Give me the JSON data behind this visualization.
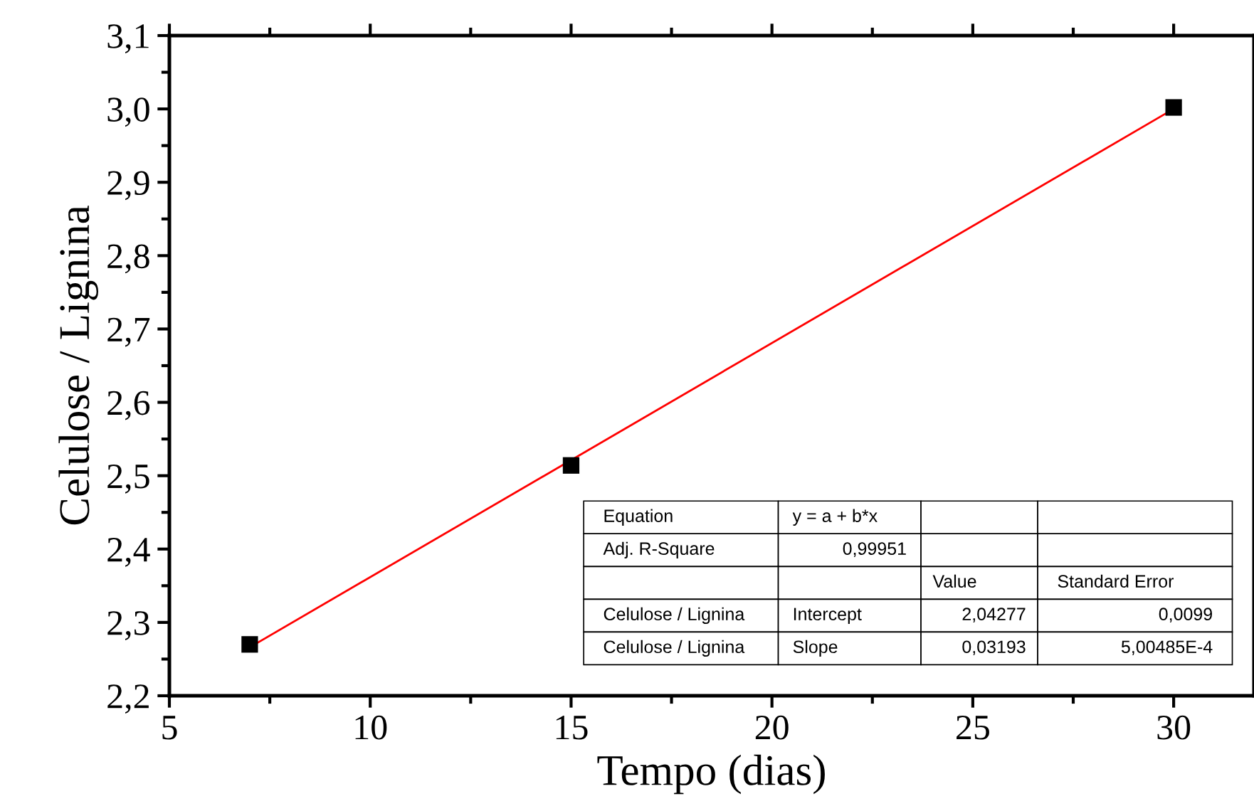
{
  "chart_data": {
    "type": "scatter",
    "xlabel": "Tempo (dias)",
    "ylabel": "Celulose / Lignina",
    "x": [
      7,
      15,
      30
    ],
    "series": [
      {
        "color": "#000000",
        "marker": "square",
        "values": [
          2.27,
          2.514,
          3.002
        ]
      },
      {
        "type": "line",
        "color": "#ff0000",
        "marker": "none",
        "line_style": "solid",
        "x": [
          7,
          30
        ],
        "values": [
          2.266,
          3.0
        ]
      }
    ],
    "xlim": [
      5,
      32
    ],
    "xticks": [
      5,
      10,
      15,
      20,
      25,
      30
    ],
    "ylim": [
      2.2,
      3.1
    ],
    "yticks": [
      {
        "value": 2.2,
        "label": "2,2"
      },
      {
        "value": 2.3,
        "label": "2,3"
      },
      {
        "value": 2.4,
        "label": "2,4"
      },
      {
        "value": 2.5,
        "label": "2,5"
      },
      {
        "value": 2.6,
        "label": "2,6"
      },
      {
        "value": 2.7,
        "label": "2,7"
      },
      {
        "value": 2.8,
        "label": "2,8"
      },
      {
        "value": 2.9,
        "label": "2,9"
      },
      {
        "value": 3.0,
        "label": "3,0"
      },
      {
        "value": 3.1,
        "label": "3,1"
      }
    ],
    "grid": false,
    "legend": false,
    "annotations": [
      "Equation",
      "y = a + b*x",
      "Adj. R-Square",
      "0,99951",
      "Value",
      "Standard Error",
      "Celulose / Lignina",
      "Intercept",
      "2,04277",
      "0,0099",
      "Celulose / Lignina",
      "Slope",
      "0,03193",
      "5,00485E-4"
    ]
  }
}
